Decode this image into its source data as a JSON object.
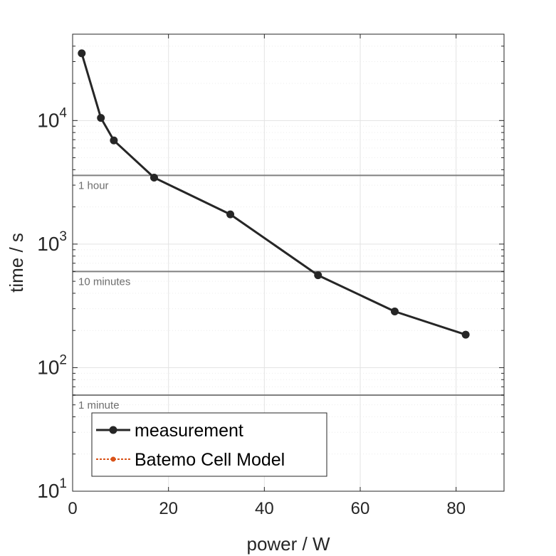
{
  "chart_data": {
    "type": "line",
    "xlabel": "power / W",
    "ylabel": "time / s",
    "xlim": [
      0,
      90
    ],
    "ylim": [
      10,
      50000
    ],
    "yscale": "log",
    "grid": true,
    "x_ticks": [
      "0",
      "20",
      "40",
      "60",
      "80"
    ],
    "y_ticks": [
      {
        "base": "10",
        "exp": "1",
        "value": 10
      },
      {
        "base": "10",
        "exp": "2",
        "value": 100
      },
      {
        "base": "10",
        "exp": "3",
        "value": 1000
      },
      {
        "base": "10",
        "exp": "4",
        "value": 10000
      }
    ],
    "series": [
      {
        "name": "measurement",
        "color": "#262626",
        "x": [
          1.9,
          5.9,
          8.6,
          17.0,
          32.9,
          51.2,
          67.2,
          82.0
        ],
        "y": [
          35000,
          10500,
          6900,
          3450,
          1740,
          560,
          285,
          185
        ]
      },
      {
        "name": "Batemo Cell Model",
        "color": "#d95319",
        "x": [],
        "y": []
      }
    ],
    "reference_lines": [
      {
        "label": "1 hour",
        "value": 3600
      },
      {
        "label": "10 minutes",
        "value": 600
      },
      {
        "label": "1 minute",
        "value": 60
      }
    ],
    "legend": {
      "placement": "bottom-left",
      "entries": [
        "measurement",
        "Batemo Cell Model"
      ]
    }
  }
}
